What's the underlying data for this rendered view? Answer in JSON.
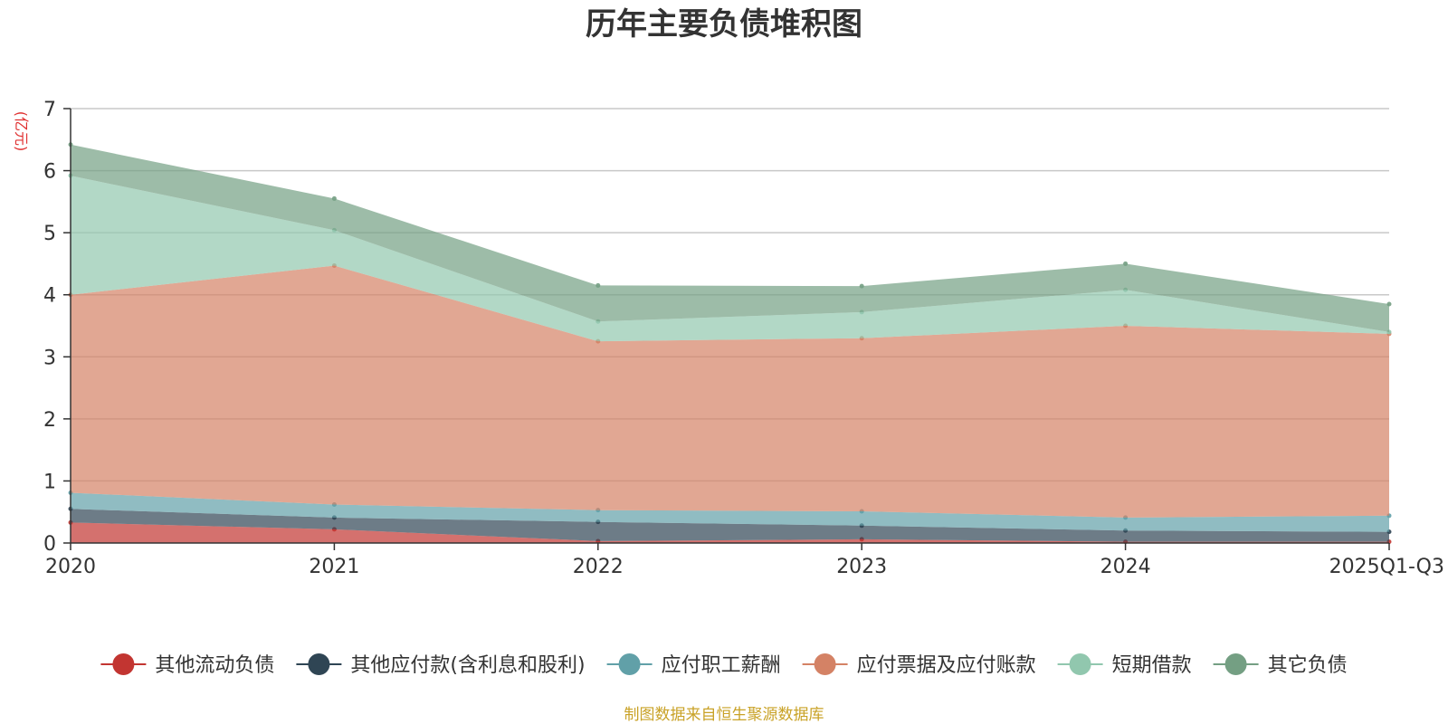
{
  "title": "历年主要负债堆积图",
  "unit_label": "(亿元)",
  "source_text": "制图数据来自恒生聚源数据库",
  "chart_data": {
    "type": "area",
    "stacked": true,
    "title": "历年主要负债堆积图",
    "ylabel": "(亿元)",
    "ylim": [
      0,
      7
    ],
    "yticks": [
      0,
      1,
      2,
      3,
      4,
      5,
      6,
      7
    ],
    "grid": true,
    "legend_position": "bottom",
    "categories": [
      "2020",
      "2021",
      "2022",
      "2023",
      "2024",
      "2025Q1-Q3"
    ],
    "series": [
      {
        "name": "其他流动负债",
        "color": "#c23531",
        "values": [
          0.33,
          0.22,
          0.03,
          0.06,
          0.02,
          0.02
        ]
      },
      {
        "name": "其他应付款(含利息和股利)",
        "color": "#2f4554",
        "values": [
          0.22,
          0.19,
          0.31,
          0.22,
          0.18,
          0.16
        ]
      },
      {
        "name": "应付职工薪酬",
        "color": "#61a0a8",
        "values": [
          0.26,
          0.21,
          0.19,
          0.23,
          0.21,
          0.26
        ]
      },
      {
        "name": "应付票据及应付账款",
        "color": "#d48265",
        "values": [
          3.19,
          3.85,
          2.72,
          2.79,
          3.09,
          2.93
        ]
      },
      {
        "name": "短期借款",
        "color": "#91c7ae",
        "values": [
          1.92,
          0.57,
          0.32,
          0.42,
          0.58,
          0.03
        ]
      },
      {
        "name": "其它负债",
        "color": "#749f83",
        "values": [
          0.5,
          0.51,
          0.58,
          0.42,
          0.42,
          0.45
        ]
      }
    ]
  }
}
